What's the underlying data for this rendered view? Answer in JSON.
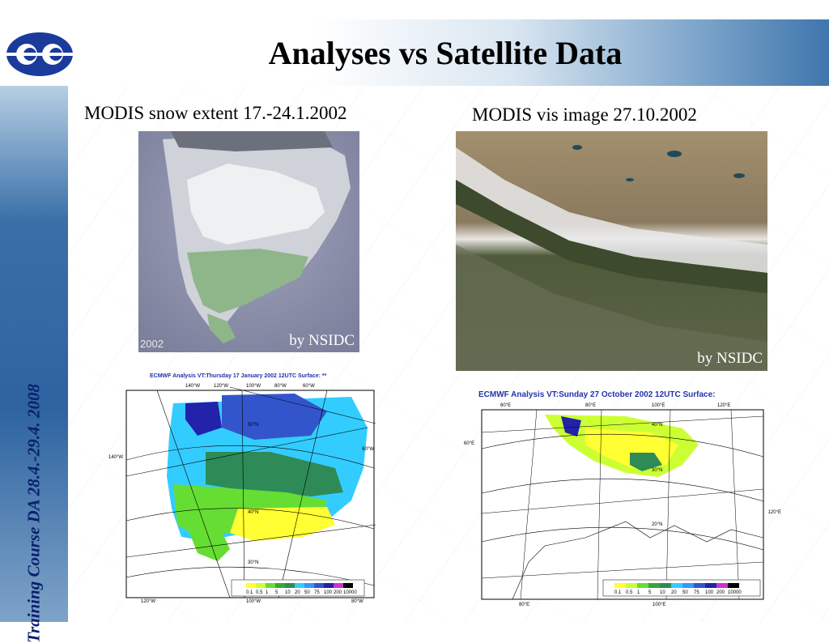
{
  "slide": {
    "title": "Analyses vs Satellite Data",
    "sidebar_text": "Training Course DA 28.4.-29.4. 2008"
  },
  "logo": {
    "icon": "ecmwf-logo-icon",
    "color": "#1a3a9c"
  },
  "left": {
    "caption": "MODIS snow extent 17.-24.1.2002",
    "image_year": "2002",
    "credit": "by NSIDC",
    "map": {
      "title": "ECMWF  Analysis VT:Thursday 17 January 2002 12UTC Surface: **",
      "lon_top": [
        "140°W",
        "120°W",
        "100°W",
        "80°W",
        "60°W"
      ],
      "lon_bottom": [
        "120°W",
        "100°W",
        "80°W"
      ],
      "side_left": "140°W",
      "side_right": "60°W",
      "lat": [
        "50°N",
        "40°N",
        "30°N"
      ],
      "legend": [
        "0.1",
        "0.5",
        "1",
        "5",
        "10",
        "20",
        "50",
        "75",
        "100",
        "200",
        "10000"
      ]
    }
  },
  "right": {
    "caption": "MODIS vis image 27.10.2002",
    "credit": "by NSIDC",
    "map": {
      "title": "ECMWF  Analysis VT:Sunday 27 October 2002 12UTC Surface:",
      "lon_top": [
        "60°E",
        "80°E",
        "100°E",
        "120°E"
      ],
      "lon_bottom": [
        "80°E",
        "100°E"
      ],
      "side_left": "60°E",
      "side_right": "120°E",
      "lat": [
        "40°N",
        "30°N",
        "20°N"
      ],
      "legend": [
        "0.1",
        "0.5",
        "1",
        "5",
        "10",
        "20",
        "50",
        "75",
        "100",
        "200",
        "10000"
      ]
    }
  },
  "legend_colors": [
    "#ffff33",
    "#ccff33",
    "#66dd33",
    "#33aa33",
    "#2e8b57",
    "#33ccff",
    "#3399ff",
    "#3355cc",
    "#2222aa",
    "#cc33cc",
    "#000000"
  ]
}
